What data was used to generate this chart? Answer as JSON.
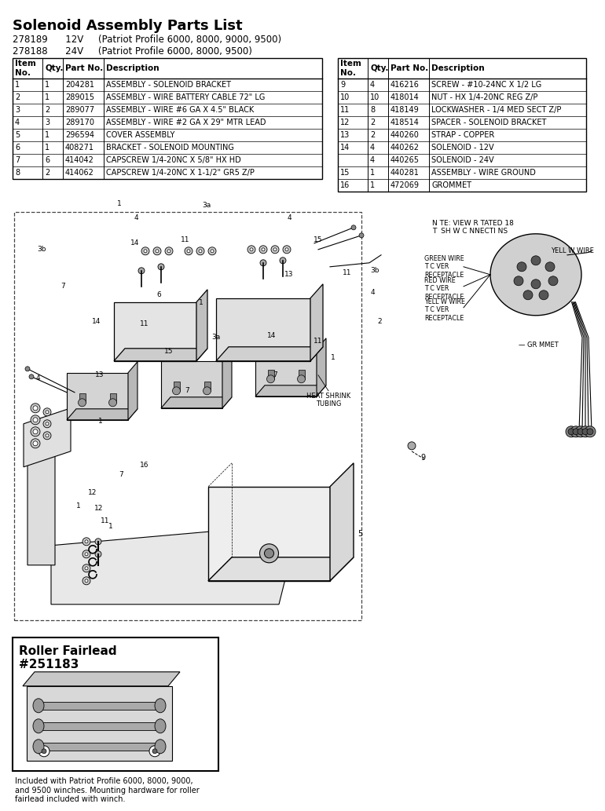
{
  "title": "Solenoid Assembly Parts List",
  "sub1": "278189      12V     (Patriot Profile 6000, 8000, 9000, 9500)",
  "sub2": "278188      24V     (Patriot Profile 6000, 8000, 9500)",
  "t1_headers": [
    "Item\nNo.",
    "Qty.",
    "Part No.",
    "Description"
  ],
  "t1_cw": [
    38,
    26,
    52,
    278
  ],
  "t1_rows": [
    [
      "1",
      "1",
      "204281",
      "ASSEMBLY - SOLENOID BRACKET"
    ],
    [
      "2",
      "1",
      "289015",
      "ASSEMBLY - WIRE BATTERY CABLE 72\" LG"
    ],
    [
      "3",
      "2",
      "289077",
      "ASSEMBLY - WIRE #6 GA X 4.5\" BLACK"
    ],
    [
      "4",
      "3",
      "289170",
      "ASSEMBLY - WIRE #2 GA X 29\" MTR LEAD"
    ],
    [
      "5",
      "1",
      "296594",
      "COVER ASSEMBLY"
    ],
    [
      "6",
      "1",
      "408271",
      "BRACKET - SOLENOID MOUNTING"
    ],
    [
      "7",
      "6",
      "414042",
      "CAPSCREW 1/4-20NC X 5/8\" HX HD"
    ],
    [
      "8",
      "2",
      "414062",
      "CAPSCREW 1/4-20NC X 1-1/2\" GR5 Z/P"
    ]
  ],
  "t2_headers": [
    "Item\nNo.",
    "Qty.",
    "Part No.",
    "Description"
  ],
  "t2_cw": [
    38,
    26,
    52,
    200
  ],
  "t2_rows": [
    [
      "9",
      "4",
      "416216",
      "SCREW - #10-24NC X 1/2 LG"
    ],
    [
      "10",
      "10",
      "418014",
      "NUT - HX 1/4-20NC REG Z/P"
    ],
    [
      "11",
      "8",
      "418149",
      "LOCKWASHER - 1/4 MED SECT Z/P"
    ],
    [
      "12",
      "2",
      "418514",
      "SPACER - SOLENOID BRACKET"
    ],
    [
      "13",
      "2",
      "440260",
      "STRAP - COPPER"
    ],
    [
      "14",
      "4",
      "440262",
      "SOLENOID - 12V"
    ],
    [
      "",
      "4",
      "440265",
      "SOLENOID - 24V"
    ],
    [
      "15",
      "1",
      "440281",
      "ASSEMBLY - WIRE GROUND"
    ],
    [
      "16",
      "1",
      "472069",
      "GROMMET"
    ]
  ],
  "roller_title": "Roller Fairlead\n#251183",
  "roller_caption": "Included with Patriot Profile 6000, 8000, 9000,\nand 9500 winches. Mounting hardware for roller\nfairlead included with winch."
}
